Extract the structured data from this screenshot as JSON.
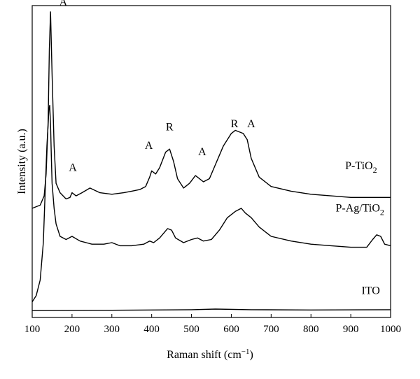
{
  "chart_data": {
    "type": "line",
    "title": "",
    "xlabel": "Raman shift (cm",
    "xlabel_sup": "−1",
    "xlabel_close": ")",
    "ylabel": "Intensity (a.u.)",
    "xlim": [
      100,
      1000
    ],
    "ylim": [
      0,
      100
    ],
    "y_tick_labels": "none",
    "grid": false,
    "x_ticks": [
      100,
      200,
      300,
      400,
      500,
      600,
      700,
      800,
      900,
      1000
    ],
    "series": [
      {
        "name": "P-TiO",
        "name_sub": "2",
        "x": [
          100,
          120,
          130,
          135,
          140,
          143,
          146,
          150,
          155,
          160,
          170,
          185,
          195,
          200,
          210,
          225,
          245,
          270,
          300,
          330,
          350,
          370,
          385,
          395,
          400,
          410,
          420,
          435,
          445,
          455,
          465,
          480,
          495,
          510,
          515,
          530,
          545,
          560,
          580,
          600,
          610,
          620,
          630,
          640,
          650,
          670,
          700,
          750,
          800,
          850,
          900,
          950,
          1000
        ],
        "y": [
          35,
          36,
          39,
          46,
          63,
          86,
          98,
          78,
          55,
          43,
          40,
          38,
          38.5,
          40,
          39,
          40,
          41.5,
          40,
          39.5,
          40,
          40.5,
          41,
          42,
          45,
          47,
          46,
          48,
          53,
          54,
          50,
          44.5,
          41.5,
          43,
          45.5,
          45,
          43.5,
          44.5,
          49,
          55,
          59,
          60,
          59.5,
          59,
          57,
          51,
          45,
          42,
          40.5,
          39.5,
          39,
          38.5,
          38.5,
          38.5
        ]
      },
      {
        "name": "P-Ag/TiO",
        "name_sub": "2",
        "x": [
          100,
          110,
          120,
          128,
          133,
          137,
          140,
          142,
          144,
          146,
          148,
          150,
          155,
          160,
          170,
          185,
          200,
          220,
          250,
          280,
          300,
          320,
          350,
          380,
          395,
          405,
          420,
          440,
          450,
          460,
          480,
          500,
          515,
          530,
          550,
          570,
          590,
          610,
          625,
          635,
          650,
          670,
          700,
          750,
          800,
          850,
          900,
          940,
          955,
          965,
          975,
          985,
          1000
        ],
        "y": [
          5,
          7,
          12,
          24,
          42,
          55,
          62,
          67,
          68,
          62,
          52,
          43,
          35,
          30,
          26,
          25,
          26,
          24.5,
          23.5,
          23.5,
          24,
          23,
          23,
          23.5,
          24.5,
          24,
          25.5,
          28.5,
          28,
          25.5,
          24,
          25,
          25.5,
          24.5,
          25,
          28,
          32,
          34,
          35,
          33.5,
          32,
          29,
          26,
          24.5,
          23.5,
          23,
          22.5,
          22.5,
          25,
          26.5,
          26,
          23.5,
          23
        ]
      },
      {
        "name": "ITO",
        "x": [
          100,
          300,
          500,
          560,
          650,
          800,
          1000
        ],
        "y": [
          2.2,
          2.3,
          2.5,
          2.7,
          2.5,
          2.4,
          2.5
        ]
      }
    ],
    "annotations": [
      {
        "text": "A",
        "x": 178,
        "y": 100
      },
      {
        "text": "A",
        "x": 202,
        "y": 47
      },
      {
        "text": "A",
        "x": 393,
        "y": 54
      },
      {
        "text": "R",
        "x": 445,
        "y": 60
      },
      {
        "text": "A",
        "x": 527,
        "y": 52
      },
      {
        "text": "R",
        "x": 608,
        "y": 61
      },
      {
        "text": "A",
        "x": 650,
        "y": 61
      }
    ]
  }
}
